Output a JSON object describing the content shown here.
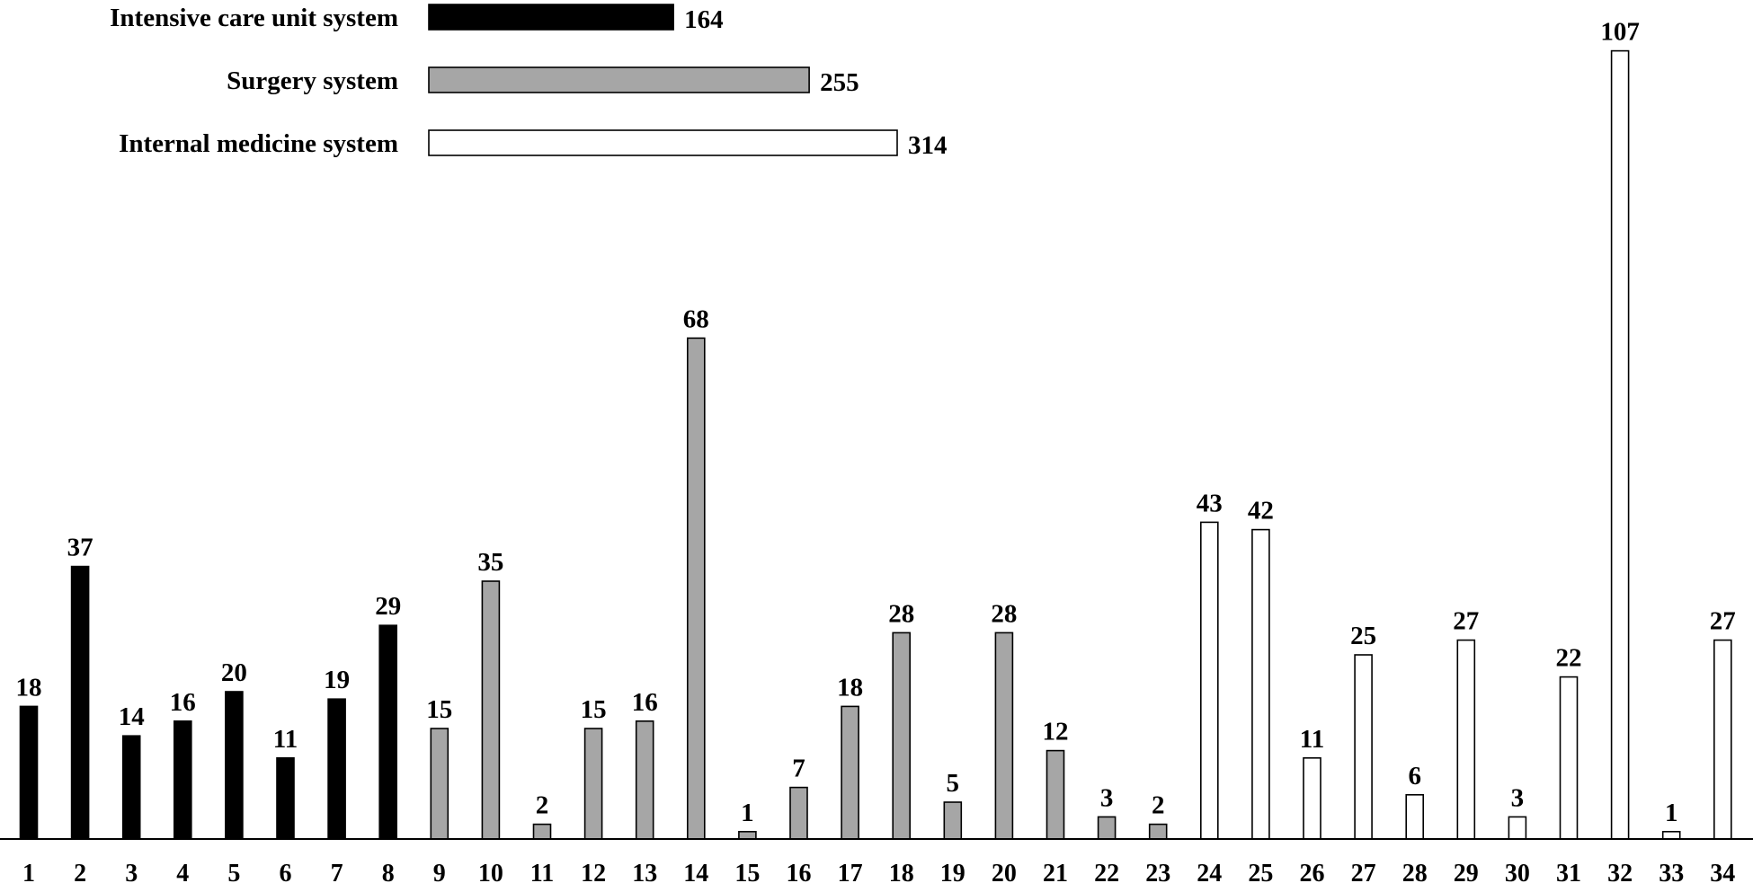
{
  "chart_data": {
    "type": "bar",
    "title": "",
    "xlabel": "",
    "ylabel": "",
    "ylim": [
      0,
      110
    ],
    "categories": [
      "1",
      "2",
      "3",
      "4",
      "5",
      "6",
      "7",
      "8",
      "9",
      "10",
      "11",
      "12",
      "13",
      "14",
      "15",
      "16",
      "17",
      "18",
      "19",
      "20",
      "21",
      "22",
      "23",
      "24",
      "25",
      "26",
      "27",
      "28",
      "29",
      "30",
      "31",
      "32",
      "33",
      "34"
    ],
    "values": [
      18,
      37,
      14,
      16,
      20,
      11,
      19,
      29,
      15,
      35,
      2,
      15,
      16,
      68,
      1,
      7,
      18,
      28,
      5,
      28,
      12,
      3,
      2,
      43,
      42,
      11,
      25,
      6,
      27,
      3,
      22,
      107,
      1,
      27
    ],
    "bar_series": [
      "icu",
      "icu",
      "icu",
      "icu",
      "icu",
      "icu",
      "icu",
      "icu",
      "surgery",
      "surgery",
      "surgery",
      "surgery",
      "surgery",
      "surgery",
      "surgery",
      "surgery",
      "surgery",
      "surgery",
      "surgery",
      "surgery",
      "surgery",
      "surgery",
      "surgery",
      "internal",
      "internal",
      "internal",
      "internal",
      "internal",
      "internal",
      "internal",
      "internal",
      "internal",
      "internal",
      "internal"
    ],
    "series": [
      {
        "key": "icu",
        "name": "Intensive care unit system",
        "total": 164,
        "fill": "#000000"
      },
      {
        "key": "surgery",
        "name": "Surgery system",
        "total": 255,
        "fill": "#a6a6a6"
      },
      {
        "key": "internal",
        "name": "Internal medicine system",
        "total": 314,
        "fill": "#ffffff"
      }
    ],
    "legend": {
      "position": "top-left",
      "max_total": 314
    },
    "grid": false
  }
}
